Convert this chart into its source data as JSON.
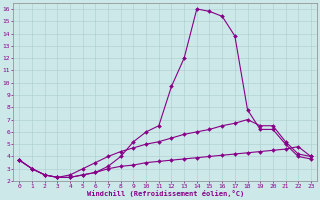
{
  "xlabel": "Windchill (Refroidissement éolien,°C)",
  "background_color": "#cce8e8",
  "line_color": "#880088",
  "grid_color": "#aacccc",
  "xlim": [
    -0.5,
    23.5
  ],
  "ylim": [
    2,
    16.5
  ],
  "xticks": [
    0,
    1,
    2,
    3,
    4,
    5,
    6,
    7,
    8,
    9,
    10,
    11,
    12,
    13,
    14,
    15,
    16,
    17,
    18,
    19,
    20,
    21,
    22,
    23
  ],
  "yticks": [
    2,
    3,
    4,
    5,
    6,
    7,
    8,
    9,
    10,
    11,
    12,
    13,
    14,
    15,
    16
  ],
  "line1_x": [
    0,
    1,
    2,
    3,
    4,
    5,
    6,
    7,
    8,
    9,
    10,
    11,
    12,
    13,
    14,
    15,
    16,
    17,
    18,
    19,
    20,
    21,
    22,
    23
  ],
  "line1_y": [
    3.7,
    3.0,
    2.5,
    2.3,
    2.3,
    2.5,
    2.7,
    3.2,
    4.0,
    5.2,
    6.0,
    6.5,
    9.7,
    12.0,
    16.0,
    15.8,
    15.4,
    13.8,
    7.8,
    6.2,
    6.2,
    5.0,
    4.0,
    3.8
  ],
  "line2_x": [
    0,
    1,
    2,
    3,
    4,
    5,
    6,
    7,
    8,
    9,
    10,
    11,
    12,
    13,
    14,
    15,
    16,
    17,
    18,
    19,
    20,
    21,
    22,
    23
  ],
  "line2_y": [
    3.7,
    3.0,
    2.5,
    2.3,
    2.5,
    3.0,
    3.5,
    4.0,
    4.4,
    4.7,
    5.0,
    5.2,
    5.5,
    5.8,
    6.0,
    6.2,
    6.5,
    6.7,
    7.0,
    6.5,
    6.5,
    5.2,
    4.2,
    4.0
  ],
  "line3_x": [
    0,
    1,
    2,
    3,
    4,
    5,
    6,
    7,
    8,
    9,
    10,
    11,
    12,
    13,
    14,
    15,
    16,
    17,
    18,
    19,
    20,
    21,
    22,
    23
  ],
  "line3_y": [
    3.7,
    3.0,
    2.5,
    2.3,
    2.3,
    2.5,
    2.7,
    3.0,
    3.2,
    3.3,
    3.5,
    3.6,
    3.7,
    3.8,
    3.9,
    4.0,
    4.1,
    4.2,
    4.3,
    4.4,
    4.5,
    4.6,
    4.8,
    4.0
  ]
}
